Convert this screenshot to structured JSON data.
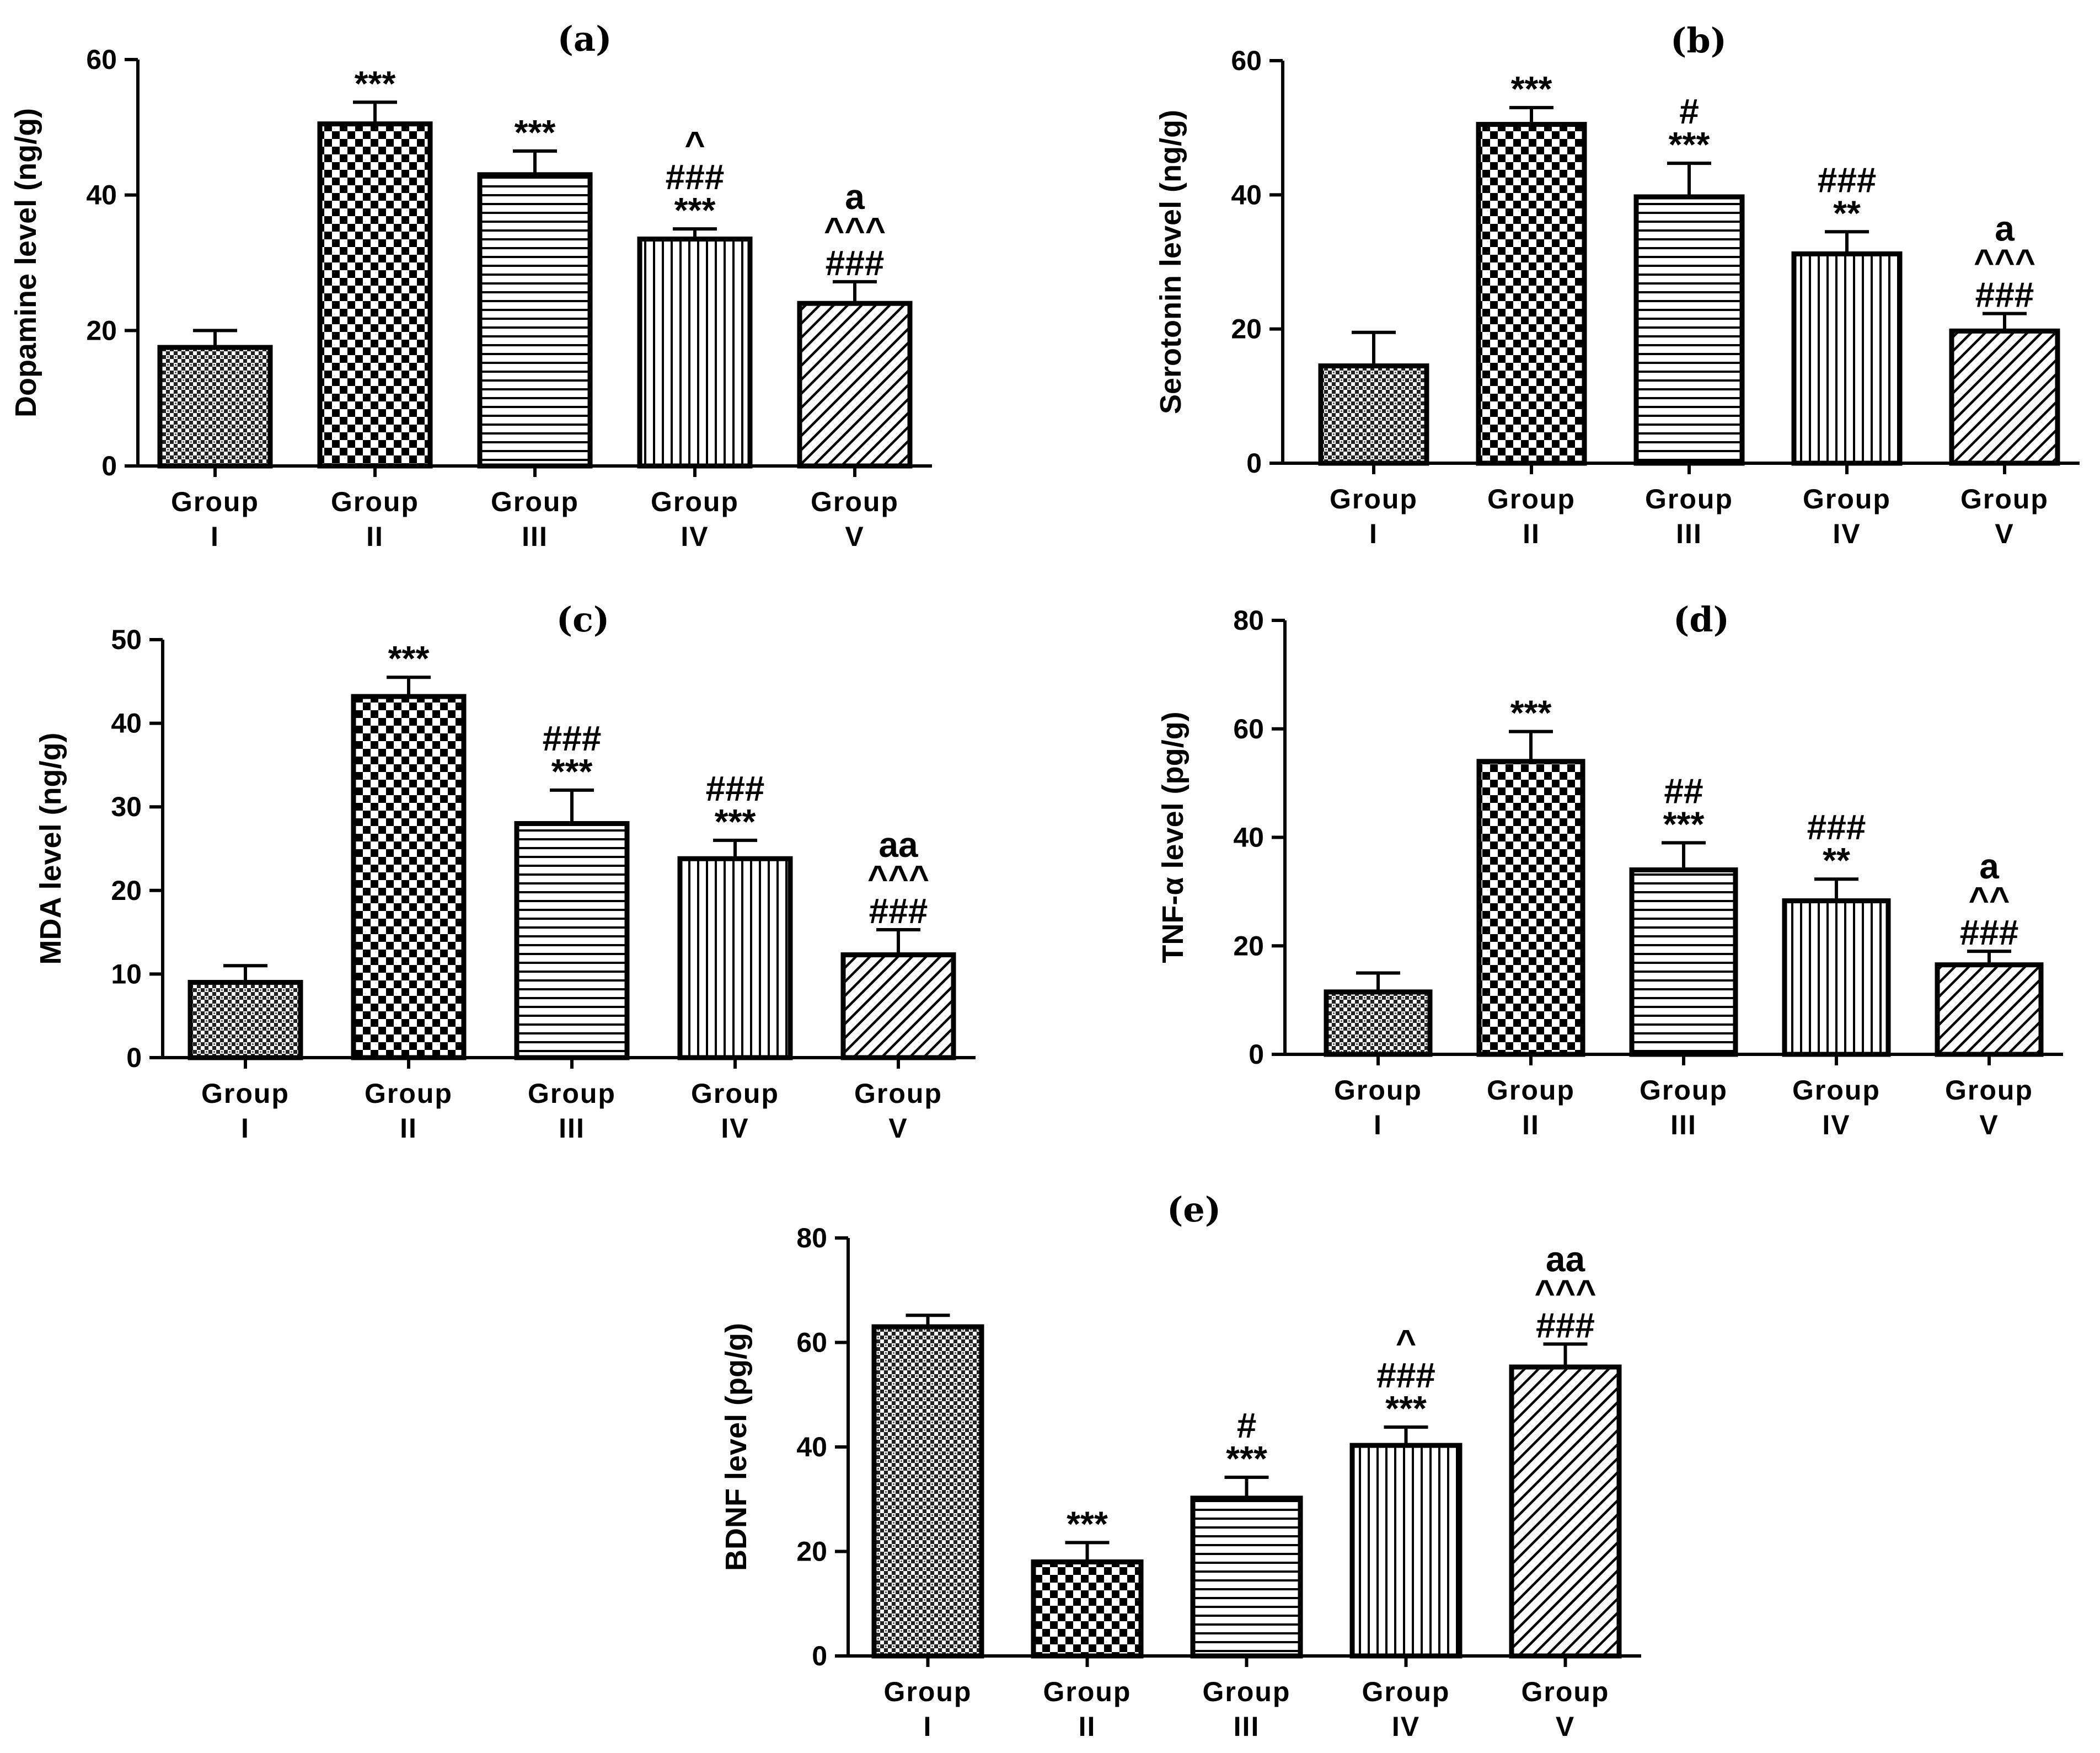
{
  "chart_data": [
    {
      "type": "bar",
      "panel": "(a)",
      "title": "(a)",
      "ylabel": "Dopamine level (ng/g)",
      "ylim": [
        0,
        60
      ],
      "yticks": [
        "0",
        "20",
        "40",
        "60"
      ],
      "categories": [
        [
          "Group",
          "I"
        ],
        [
          "Group",
          "II"
        ],
        [
          "Group",
          "III"
        ],
        [
          "Group",
          "IV"
        ],
        [
          "Group",
          "V"
        ]
      ],
      "values": [
        17.5,
        50.5,
        43,
        33.5,
        24
      ],
      "errors": [
        2.5,
        3.2,
        3.5,
        1.5,
        3.2
      ],
      "annotations": [
        [],
        [
          "***"
        ],
        [
          "***"
        ],
        [
          "^",
          "###",
          "***"
        ],
        [
          "a",
          "^^^",
          "###"
        ]
      ],
      "patterns": [
        "fine",
        "checker",
        "hlines",
        "vlines",
        "diag"
      ]
    },
    {
      "type": "bar",
      "panel": "(b)",
      "title": "(b)",
      "ylabel": "Serotonin level (ng/g)",
      "ylim": [
        0,
        60
      ],
      "yticks": [
        "0",
        "20",
        "40",
        "60"
      ],
      "categories": [
        [
          "Group",
          "I"
        ],
        [
          "Group",
          "II"
        ],
        [
          "Group",
          "III"
        ],
        [
          "Group",
          "IV"
        ],
        [
          "Group",
          "V"
        ]
      ],
      "values": [
        14.5,
        50.5,
        39.7,
        31.2,
        19.7
      ],
      "errors": [
        5,
        2.5,
        5,
        3.3,
        2.6
      ],
      "annotations": [
        [],
        [
          "***"
        ],
        [
          "#",
          "***"
        ],
        [
          "###",
          "**"
        ],
        [
          "a",
          "^^^",
          "###"
        ]
      ],
      "patterns": [
        "fine",
        "checker",
        "hlines",
        "vlines",
        "diag"
      ]
    },
    {
      "type": "bar",
      "panel": "(c)",
      "title": "(c)",
      "ylabel": "MDA level (ng/g)",
      "ylim": [
        0,
        50
      ],
      "yticks": [
        "0",
        "10",
        "20",
        "30",
        "40",
        "50"
      ],
      "categories": [
        [
          "Group",
          "I"
        ],
        [
          "Group",
          "II"
        ],
        [
          "Group",
          "III"
        ],
        [
          "Group",
          "IV"
        ],
        [
          "Group",
          "V"
        ]
      ],
      "values": [
        9,
        43.2,
        28,
        23.8,
        12.3
      ],
      "errors": [
        2,
        2.3,
        4,
        2.2,
        3
      ],
      "annotations": [
        [],
        [
          "***"
        ],
        [
          "###",
          "***"
        ],
        [
          "###",
          "***"
        ],
        [
          "aa",
          "^^^",
          "###"
        ]
      ],
      "patterns": [
        "fine",
        "checker",
        "hlines",
        "vlines",
        "diag"
      ]
    },
    {
      "type": "bar",
      "panel": "(d)",
      "title": "(d)",
      "ylabel": "TNF-α level (pg/g)",
      "ylim": [
        0,
        80
      ],
      "yticks": [
        "0",
        "20",
        "40",
        "60",
        "80"
      ],
      "categories": [
        [
          "Group",
          "I"
        ],
        [
          "Group",
          "II"
        ],
        [
          "Group",
          "III"
        ],
        [
          "Group",
          "IV"
        ],
        [
          "Group",
          "V"
        ]
      ],
      "values": [
        11.5,
        54,
        34,
        28.3,
        16.5
      ],
      "errors": [
        3.5,
        5.5,
        5,
        4,
        2.5
      ],
      "annotations": [
        [],
        [
          "***"
        ],
        [
          "##",
          "***"
        ],
        [
          "###",
          "**"
        ],
        [
          "a",
          "^^",
          "###"
        ]
      ],
      "patterns": [
        "fine",
        "checker",
        "hlines",
        "vlines",
        "diag"
      ]
    },
    {
      "type": "bar",
      "panel": "(e)",
      "title": "(e)",
      "ylabel": "BDNF level (pg/g)",
      "ylim": [
        0,
        80
      ],
      "yticks": [
        "0",
        "20",
        "40",
        "60",
        "80"
      ],
      "categories": [
        [
          "Group",
          "I"
        ],
        [
          "Group",
          "II"
        ],
        [
          "Group",
          "III"
        ],
        [
          "Group",
          "IV"
        ],
        [
          "Group",
          "V"
        ]
      ],
      "values": [
        63,
        18,
        30.2,
        40.3,
        55.3
      ],
      "errors": [
        2.2,
        3.7,
        4,
        3.5,
        4.4
      ],
      "annotations": [
        [],
        [
          "***"
        ],
        [
          "#",
          "***"
        ],
        [
          "^",
          "###",
          "***"
        ],
        [
          "aa",
          "^^^",
          "###"
        ]
      ],
      "patterns": [
        "fine",
        "checker",
        "hlines",
        "vlines",
        "diag"
      ]
    }
  ]
}
